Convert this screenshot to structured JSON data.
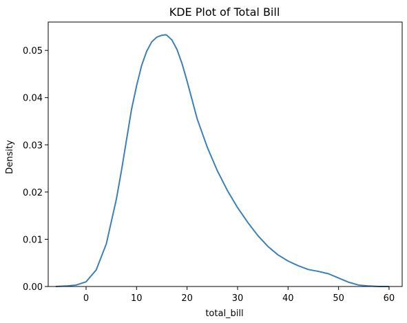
{
  "chart_data": {
    "type": "line",
    "title": "KDE Plot of Total Bill",
    "xlabel": "total_bill",
    "ylabel": "Density",
    "xlim": [
      -7.5,
      62.6
    ],
    "ylim": [
      0.0,
      0.056
    ],
    "x_ticks": [
      0,
      10,
      20,
      30,
      40,
      50,
      60
    ],
    "y_ticks": [
      0.0,
      0.01,
      0.02,
      0.03,
      0.04,
      0.05
    ],
    "y_tick_labels": [
      "0.00",
      "0.01",
      "0.02",
      "0.03",
      "0.04",
      "0.05"
    ],
    "grid": false,
    "line_color": "#3a80b8",
    "series": [
      {
        "x": [
          -6,
          -4,
          -2,
          0,
          2,
          4,
          6,
          7,
          8,
          9,
          10,
          11,
          12,
          13,
          14,
          15,
          15.7,
          16,
          17,
          18,
          19,
          20,
          22,
          24,
          26,
          28,
          30,
          32,
          34,
          36,
          38,
          40,
          42,
          44,
          46,
          48,
          50,
          52,
          54,
          56,
          58,
          60
        ],
        "y": [
          0.0,
          0.0001,
          0.0003,
          0.001,
          0.0035,
          0.009,
          0.0185,
          0.0245,
          0.031,
          0.0375,
          0.0425,
          0.0468,
          0.0498,
          0.0518,
          0.0528,
          0.0532,
          0.0533,
          0.0532,
          0.0522,
          0.0502,
          0.0472,
          0.0435,
          0.0355,
          0.0295,
          0.0245,
          0.0203,
          0.0167,
          0.0136,
          0.0108,
          0.0085,
          0.0067,
          0.0054,
          0.0044,
          0.0036,
          0.0032,
          0.0027,
          0.0018,
          0.0009,
          0.0003,
          0.0001,
          0.0,
          0.0
        ]
      }
    ]
  }
}
